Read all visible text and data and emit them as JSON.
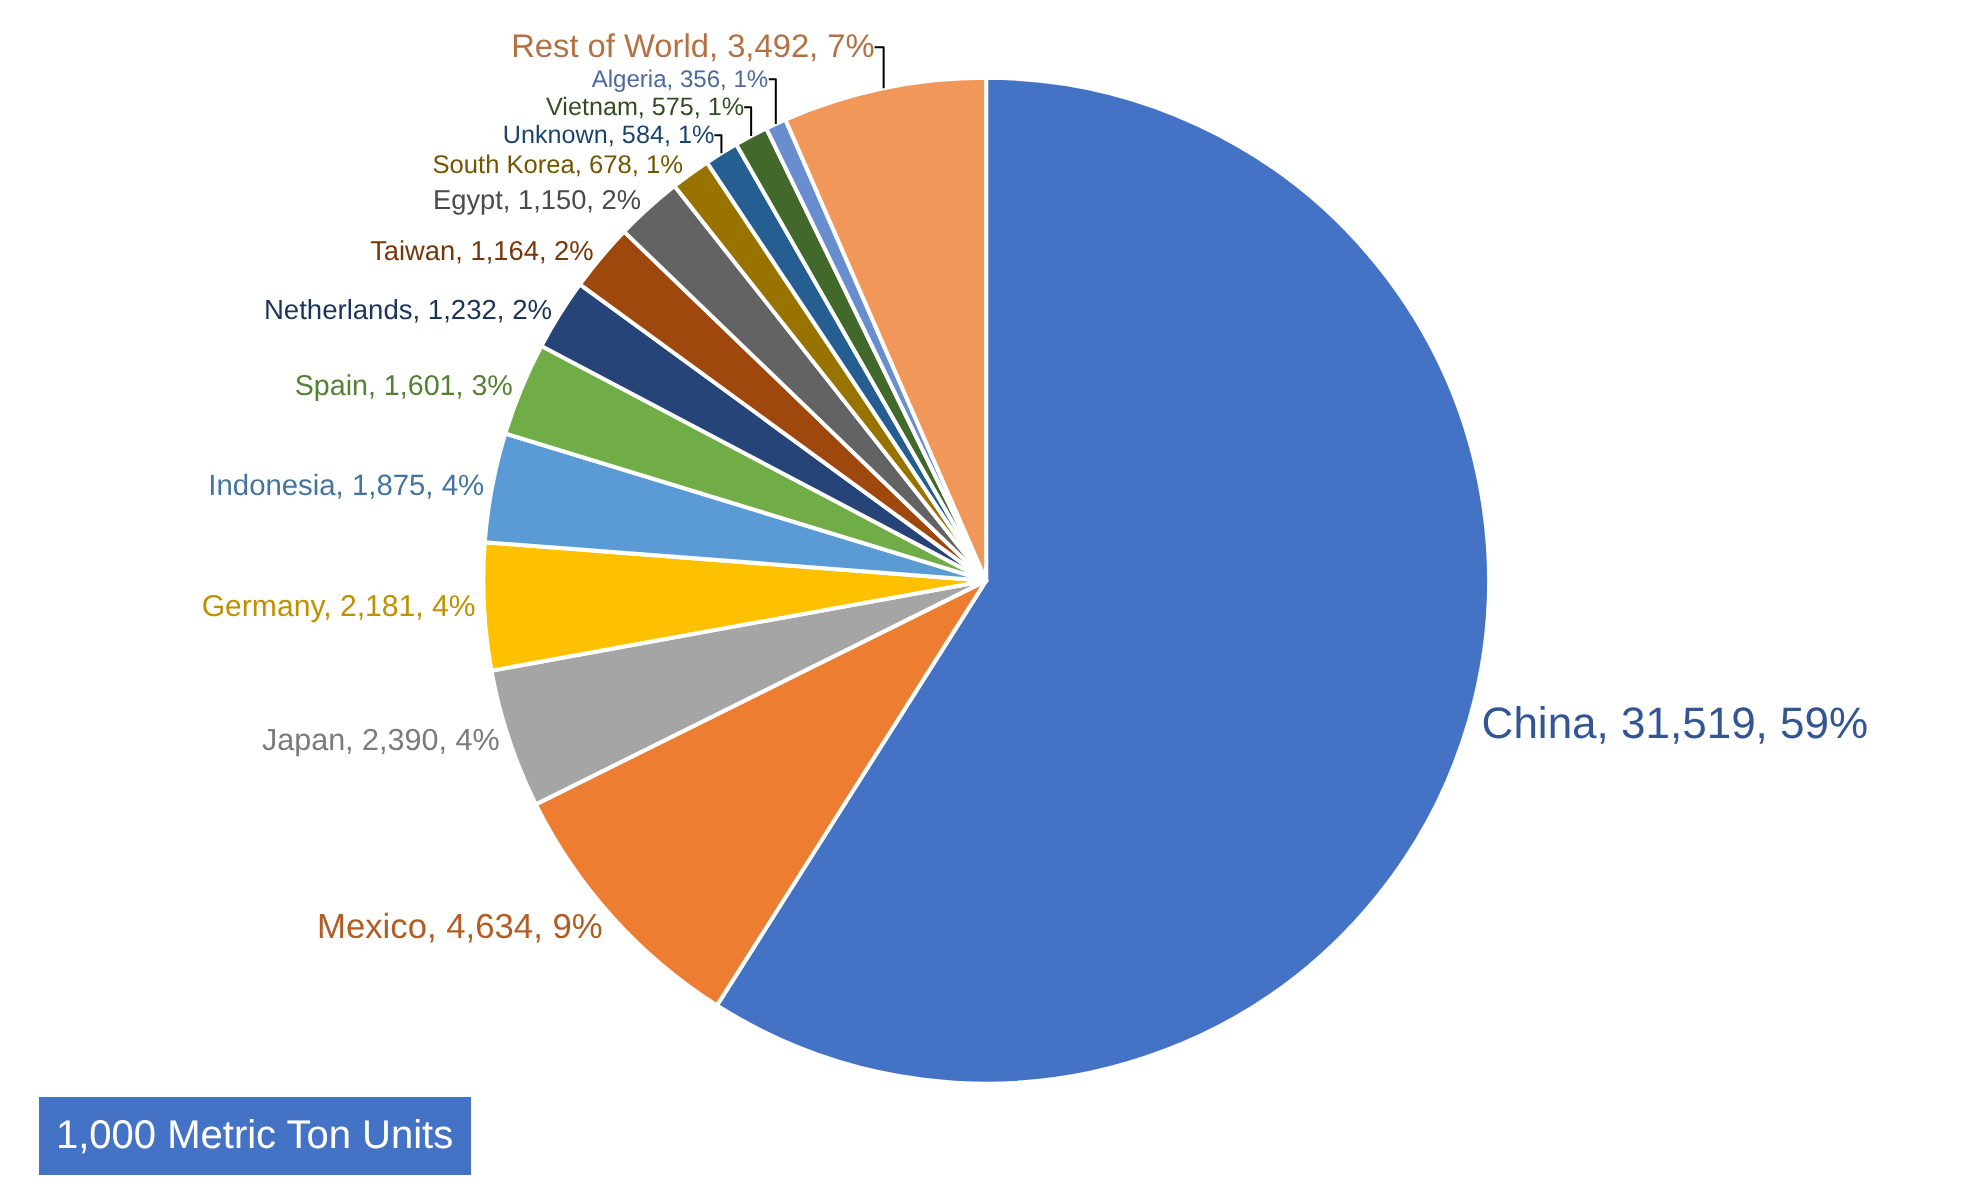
{
  "chart_data": {
    "type": "pie",
    "categories": [
      "China",
      "Mexico",
      "Japan",
      "Germany",
      "Indonesia",
      "Spain",
      "Netherlands",
      "Taiwan",
      "Egypt",
      "South Korea",
      "Unknown",
      "Vietnam",
      "Algeria",
      "Rest of World"
    ],
    "values": [
      31519,
      4634,
      2390,
      2181,
      1875,
      1601,
      1232,
      1164,
      1150,
      678,
      584,
      575,
      356,
      3492
    ],
    "value_labels": [
      "31,519, 59%",
      "4,634, 9%",
      "2,390, 4%",
      "2,181, 4%",
      "1,875, 4%",
      "1,601, 3%",
      "1,232, 2%",
      "1,164, 2%",
      "1,150, 2%",
      "678, 1%",
      "584, 1%",
      "575, 1%",
      "356, 1%",
      "3,492, 7%"
    ],
    "colors": [
      "#4472c4",
      "#ed7d31",
      "#a5a5a5",
      "#ffc000",
      "#5b9bd5",
      "#70ad47",
      "#264478",
      "#9e480e",
      "#636363",
      "#997300",
      "#255e91",
      "#43682b",
      "#698ed0",
      "#f1975a"
    ],
    "annotations": [
      "1,000 Metric Ton Units"
    ],
    "legend": false
  }
}
